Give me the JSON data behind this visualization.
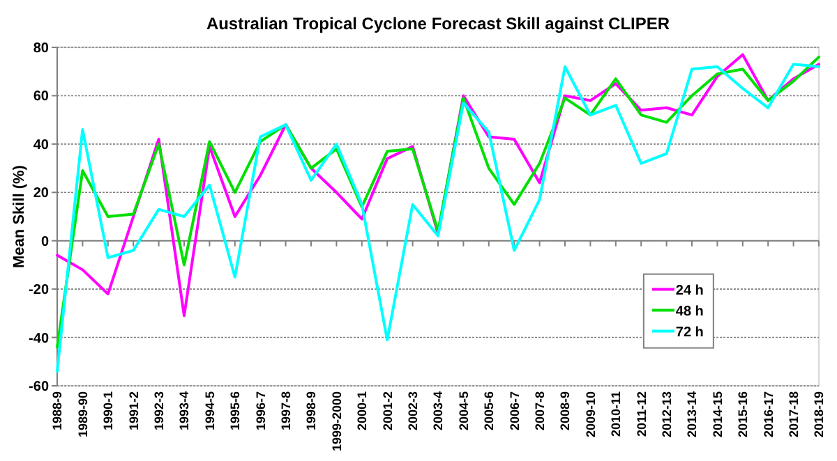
{
  "chart_data": {
    "type": "line",
    "title": "Australian Tropical Cyclone Forecast Skill against CLIPER",
    "ylabel": "Mean Skill (%)",
    "categories": [
      "1988-9",
      "1989-90",
      "1990-1",
      "1991-2",
      "1992-3",
      "1993-4",
      "1994-5",
      "1995-6",
      "1996-7",
      "1997-8",
      "1998-9",
      "1999-2000",
      "2000-1",
      "2001-2",
      "2002-3",
      "2003-4",
      "2004-5",
      "2005-6",
      "2006-7",
      "2007-8",
      "2008-9",
      "2009-10",
      "2010-11",
      "2011-12",
      "2012-13",
      "2013-14",
      "2014-15",
      "2015-16",
      "2016-17",
      "2017-18",
      "2018-19"
    ],
    "series": [
      {
        "name": "24 h",
        "color": "#ff00ff",
        "values": [
          -6,
          -12,
          -22,
          10,
          42,
          -31,
          39,
          10,
          27,
          48,
          30,
          20,
          9,
          34,
          39,
          3,
          60,
          43,
          42,
          24,
          60,
          58,
          65,
          54,
          55,
          52,
          68,
          77,
          58,
          67,
          73
        ]
      },
      {
        "name": "48 h",
        "color": "#00e000",
        "values": [
          -44,
          29,
          10,
          11,
          40,
          -10,
          41,
          20,
          41,
          48,
          30,
          38,
          14,
          37,
          38,
          4,
          59,
          30,
          15,
          32,
          59,
          52,
          67,
          52,
          49,
          60,
          69,
          71,
          58,
          66,
          76
        ]
      },
      {
        "name": "72 h",
        "color": "#00ffff",
        "values": [
          -54,
          46,
          -7,
          -4,
          13,
          10,
          23,
          -15,
          43,
          48,
          25,
          40,
          15,
          -41,
          15,
          2,
          57,
          45,
          -4,
          17,
          72,
          52,
          56,
          32,
          36,
          71,
          72,
          63,
          55,
          73,
          72
        ]
      }
    ],
    "ylim": [
      -60,
      80
    ],
    "yticks": [
      -60,
      -40,
      -20,
      0,
      20,
      40,
      60,
      80
    ],
    "grid": "y",
    "legend": "bottom right",
    "marker": "none",
    "line_style": "solid"
  }
}
